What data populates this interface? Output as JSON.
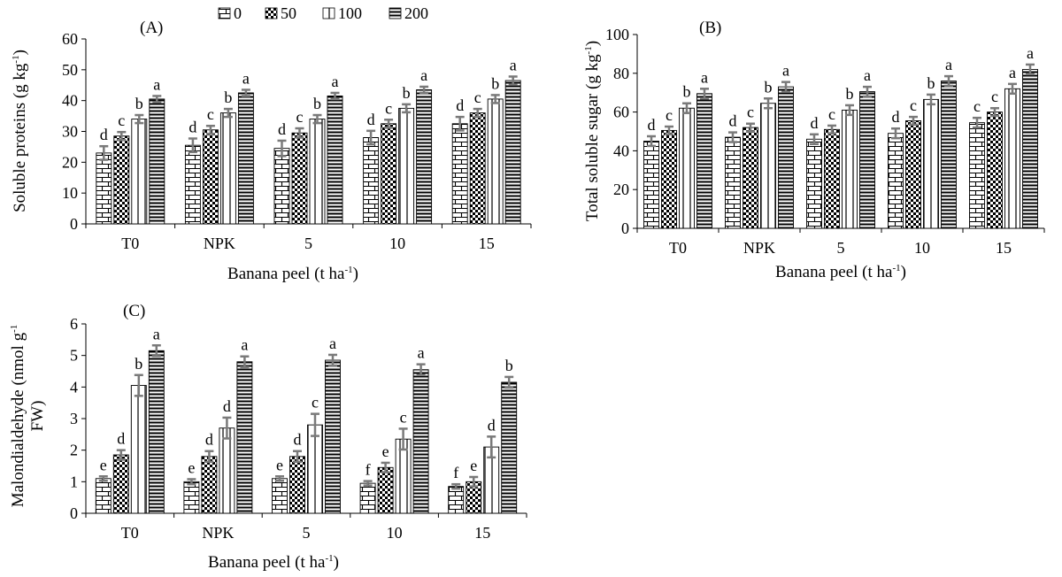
{
  "legend": {
    "series_order": [
      "0",
      "50",
      "100",
      "200"
    ]
  },
  "chart_data": [
    {
      "id": "A",
      "type": "bar",
      "panel_label": "(A)",
      "ylabel": "Soluble proteins (g kg-1)",
      "ylabel_base": "Soluble proteins (g kg",
      "ylabel_sup": "-1",
      "ylabel_end": ")",
      "xlabel": "Banana peel (t ha-1)",
      "xlabel_base": "Banana peel (t ha",
      "xlabel_sup": "-1",
      "xlabel_end": ")",
      "ylim": [
        0,
        60
      ],
      "yticks": [
        "0",
        "10",
        "20",
        "30",
        "40",
        "50",
        "60"
      ],
      "categories": [
        "T0",
        "NPK",
        "5",
        "10",
        "15"
      ],
      "series": [
        {
          "name": "0",
          "values": [
            23,
            25.5,
            24.5,
            28,
            32.5
          ],
          "errors": [
            2.2,
            2.2,
            2.5,
            2.2,
            2.2
          ],
          "letters": [
            "d",
            "d",
            "d",
            "d",
            "d"
          ]
        },
        {
          "name": "50",
          "values": [
            28.5,
            30.5,
            29.5,
            32.5,
            36
          ],
          "errors": [
            1.3,
            1.3,
            1.5,
            1.3,
            1.3
          ],
          "letters": [
            "c",
            "c",
            "c",
            "c",
            "c"
          ]
        },
        {
          "name": "100",
          "values": [
            34,
            36,
            34,
            37.5,
            40.5
          ],
          "errors": [
            1.3,
            1.3,
            1.3,
            1.3,
            1.3
          ],
          "letters": [
            "b",
            "b",
            "b",
            "b",
            "b"
          ]
        },
        {
          "name": "200",
          "values": [
            40.5,
            42.5,
            41.5,
            43.5,
            46.5
          ],
          "errors": [
            1,
            1,
            1,
            1,
            1.3
          ],
          "letters": [
            "a",
            "a",
            "a",
            "a",
            "a"
          ]
        }
      ]
    },
    {
      "id": "B",
      "type": "bar",
      "panel_label": "(B)",
      "ylabel": "Total soluble sugar (g kg-1)",
      "ylabel_base": "Total soluble sugar (g kg",
      "ylabel_sup": "-1",
      "ylabel_end": ")",
      "xlabel": "Banana peel (t ha-1)",
      "xlabel_base": "Banana peel (t ha",
      "xlabel_sup": "-1",
      "xlabel_end": ")",
      "ylim": [
        0,
        100
      ],
      "yticks": [
        "0",
        "20",
        "40",
        "60",
        "80",
        "100"
      ],
      "categories": [
        "T0",
        "NPK",
        "5",
        "10",
        "15"
      ],
      "series": [
        {
          "name": "0",
          "values": [
            45,
            47,
            46,
            49,
            54.5
          ],
          "errors": [
            2.5,
            2.5,
            2.5,
            2.5,
            2.5
          ],
          "letters": [
            "d",
            "d",
            "d",
            "d",
            "c"
          ]
        },
        {
          "name": "50",
          "values": [
            50.5,
            52,
            51,
            55.5,
            60
          ],
          "errors": [
            2,
            2,
            2,
            2,
            2
          ],
          "letters": [
            "c",
            "c",
            "c",
            "c",
            "c"
          ]
        },
        {
          "name": "100",
          "values": [
            62,
            64.5,
            61,
            66.5,
            72
          ],
          "errors": [
            2.5,
            2.5,
            2.5,
            2.5,
            2.5
          ],
          "letters": [
            "b",
            "b",
            "b",
            "b",
            "a"
          ]
        },
        {
          "name": "200",
          "values": [
            69.5,
            73,
            70.5,
            76,
            82
          ],
          "errors": [
            2.5,
            2.5,
            2.5,
            2.5,
            2.5
          ],
          "letters": [
            "a",
            "a",
            "a",
            "a",
            "a"
          ]
        }
      ]
    },
    {
      "id": "C",
      "type": "bar",
      "panel_label": "(C)",
      "ylabel": "Malondialdehyde (nmol g-1 FW)",
      "ylabel_base": "Malondialdehyde (nmol g",
      "ylabel_sup": "-1",
      "ylabel_line2": "FW)",
      "xlabel": "Banana peel (t ha-1)",
      "xlabel_base": "Banana peel (t ha",
      "xlabel_sup": "-1",
      "xlabel_end": ")",
      "ylim": [
        0,
        6
      ],
      "yticks": [
        "0",
        "1",
        "2",
        "3",
        "4",
        "5",
        "6"
      ],
      "categories": [
        "T0",
        "NPK",
        "5",
        "10",
        "15"
      ],
      "series": [
        {
          "name": "0",
          "values": [
            1.1,
            1.0,
            1.1,
            0.95,
            0.85
          ],
          "errors": [
            0.07,
            0.08,
            0.07,
            0.07,
            0.07
          ],
          "letters": [
            "e",
            "e",
            "e",
            "f",
            "f"
          ]
        },
        {
          "name": "50",
          "values": [
            1.85,
            1.8,
            1.8,
            1.45,
            1.0
          ],
          "errors": [
            0.15,
            0.17,
            0.17,
            0.15,
            0.15
          ],
          "letters": [
            "d",
            "d",
            "d",
            "e",
            "e"
          ]
        },
        {
          "name": "100",
          "values": [
            4.05,
            2.7,
            2.8,
            2.35,
            2.1
          ],
          "errors": [
            0.33,
            0.33,
            0.35,
            0.33,
            0.33
          ],
          "letters": [
            "b",
            "d",
            "c",
            "c",
            "d"
          ]
        },
        {
          "name": "200",
          "values": [
            5.15,
            4.8,
            4.85,
            4.55,
            4.15
          ],
          "errors": [
            0.17,
            0.17,
            0.17,
            0.17,
            0.17
          ],
          "letters": [
            "a",
            "a",
            "a",
            "a",
            "b"
          ]
        }
      ]
    }
  ]
}
